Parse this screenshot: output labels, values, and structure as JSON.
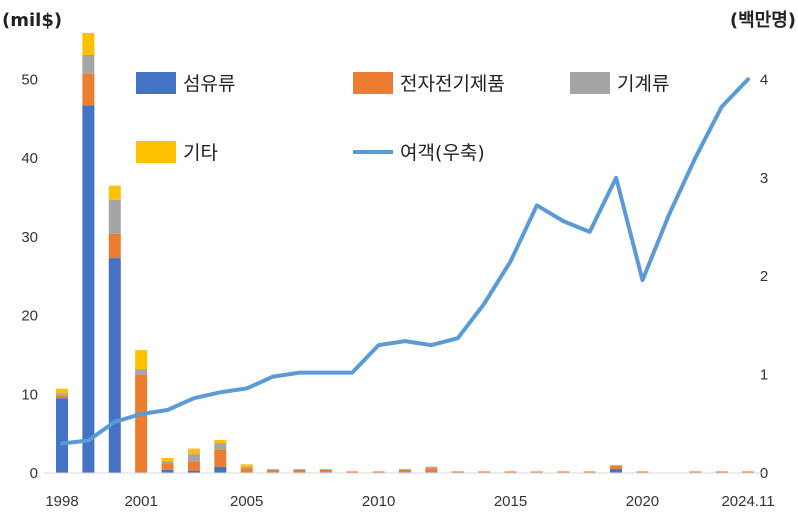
{
  "chart_data": {
    "type": "bar",
    "stacked": true,
    "left_unit": "(mil$)",
    "right_unit": "(백만명)",
    "years": [
      1998,
      1999,
      2000,
      2001,
      2002,
      2003,
      2004,
      2005,
      2006,
      2007,
      2008,
      2009,
      2010,
      2011,
      2012,
      2013,
      2014,
      2015,
      2016,
      2017,
      2018,
      2019,
      2020,
      2021,
      2022,
      2023,
      2024.11
    ],
    "x_tick_labels": [
      "1998",
      "2001",
      "2005",
      "2010",
      "2015",
      "2020",
      "2024.11"
    ],
    "x_tick_years": [
      1998,
      2001,
      2005,
      2010,
      2015,
      2020,
      2024.11
    ],
    "y_left": {
      "min": 0,
      "max": 55,
      "ticks": [
        0,
        10,
        20,
        30,
        40,
        50
      ],
      "tick_labels": [
        "0",
        "10",
        "20",
        "30",
        "40",
        "50"
      ]
    },
    "y_right": {
      "min": 0,
      "max": 4.4,
      "ticks": [
        0,
        1,
        2,
        3,
        4
      ],
      "tick_labels": [
        "0",
        "1",
        "2",
        "3",
        "4"
      ]
    },
    "series": [
      {
        "name": "섬유류",
        "type": "bar",
        "color": "#4472C4",
        "values": [
          9.5,
          46.7,
          27.3,
          0,
          0.4,
          0.3,
          0.8,
          0,
          0.1,
          0.1,
          0.1,
          0,
          0,
          0.1,
          0.1,
          0,
          0,
          0,
          0,
          0,
          0,
          0.5,
          0,
          0,
          0,
          0,
          0
        ]
      },
      {
        "name": "전자전기제품",
        "type": "bar",
        "color": "#ED7D31",
        "values": [
          0.3,
          4.0,
          3.1,
          12.5,
          0.8,
          1.2,
          2.2,
          0.6,
          0.3,
          0.3,
          0.3,
          0.2,
          0.2,
          0.3,
          0.5,
          0.2,
          0.2,
          0.2,
          0.2,
          0.2,
          0.2,
          0.4,
          0.2,
          0,
          0.2,
          0.2,
          0.2
        ]
      },
      {
        "name": "기계류",
        "type": "bar",
        "color": "#A5A5A5",
        "values": [
          0.3,
          2.4,
          4.3,
          0.7,
          0.3,
          0.9,
          0.8,
          0.2,
          0.1,
          0.1,
          0.1,
          0,
          0,
          0.1,
          0.2,
          0,
          0,
          0,
          0,
          0,
          0,
          0.1,
          0,
          0,
          0,
          0,
          0
        ]
      },
      {
        "name": "기타",
        "type": "bar",
        "color": "#FFC000",
        "values": [
          0.6,
          2.8,
          1.8,
          2.4,
          0.4,
          0.7,
          0.4,
          0.3,
          0,
          0,
          0,
          0,
          0,
          0,
          0,
          0,
          0,
          0,
          0,
          0,
          0,
          0,
          0,
          0,
          0,
          0,
          0
        ]
      },
      {
        "name": "여객(우축)",
        "type": "line",
        "axis": "right",
        "color": "#5B9BD5",
        "values": [
          0.3,
          0.33,
          0.52,
          0.6,
          0.64,
          0.76,
          0.82,
          0.86,
          0.98,
          1.02,
          1.02,
          1.02,
          1.3,
          1.34,
          1.3,
          1.37,
          1.72,
          2.15,
          2.72,
          2.56,
          2.45,
          3.0,
          1.96,
          2.62,
          3.2,
          3.72,
          4.0
        ]
      }
    ]
  }
}
